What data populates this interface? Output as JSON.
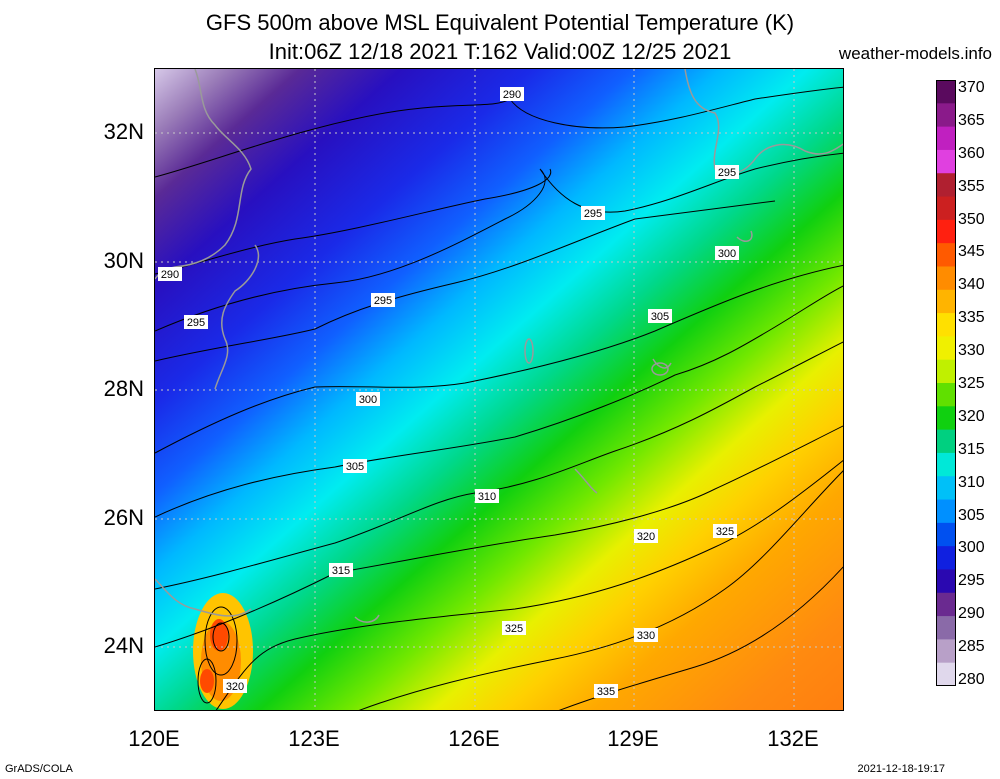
{
  "title": {
    "line1": "GFS 500m above MSL Equivalent Potential Temperature (K)",
    "line2": "Init:06Z 12/18 2021 T:162 Valid:00Z 12/25 2021"
  },
  "source": "weather-models.info",
  "footer": {
    "left": "GrADS/COLA",
    "right": "2021-12-18-19:17"
  },
  "axes": {
    "lat_labels": [
      "32N",
      "30N",
      "28N",
      "26N",
      "24N"
    ],
    "lon_labels": [
      "120E",
      "123E",
      "126E",
      "129E",
      "132E"
    ],
    "lat_values": [
      32,
      30,
      28,
      26,
      24
    ],
    "lon_values": [
      120,
      123,
      126,
      129,
      132
    ]
  },
  "colorbar": {
    "ticks": [
      "370",
      "365",
      "360",
      "355",
      "350",
      "345",
      "340",
      "335",
      "330",
      "325",
      "320",
      "315",
      "310",
      "305",
      "300",
      "295",
      "290",
      "285",
      "280"
    ],
    "colors": [
      "#5a0a5e",
      "#8a1a8a",
      "#c020c0",
      "#e040e0",
      "#b02030",
      "#cc2020",
      "#ff2010",
      "#ff5a00",
      "#ff8c00",
      "#ffb400",
      "#ffe000",
      "#f0f000",
      "#c0f000",
      "#60e000",
      "#10d010",
      "#00d080",
      "#00e8d8",
      "#00c0f8",
      "#0090ff",
      "#0050f0",
      "#1020e0",
      "#2a08b0",
      "#6a2a90",
      "#8a6aa8",
      "#b8a0c8",
      "#e0d8ec"
    ]
  },
  "contour_labels": [
    {
      "text": "290"
    },
    {
      "text": "290"
    },
    {
      "text": "295"
    },
    {
      "text": "295"
    },
    {
      "text": "295"
    },
    {
      "text": "295"
    },
    {
      "text": "300"
    },
    {
      "text": "300"
    },
    {
      "text": "305"
    },
    {
      "text": "305"
    },
    {
      "text": "310"
    },
    {
      "text": "315"
    },
    {
      "text": "320"
    },
    {
      "text": "320"
    },
    {
      "text": "325"
    },
    {
      "text": "325"
    },
    {
      "text": "330"
    },
    {
      "text": "335"
    }
  ]
}
